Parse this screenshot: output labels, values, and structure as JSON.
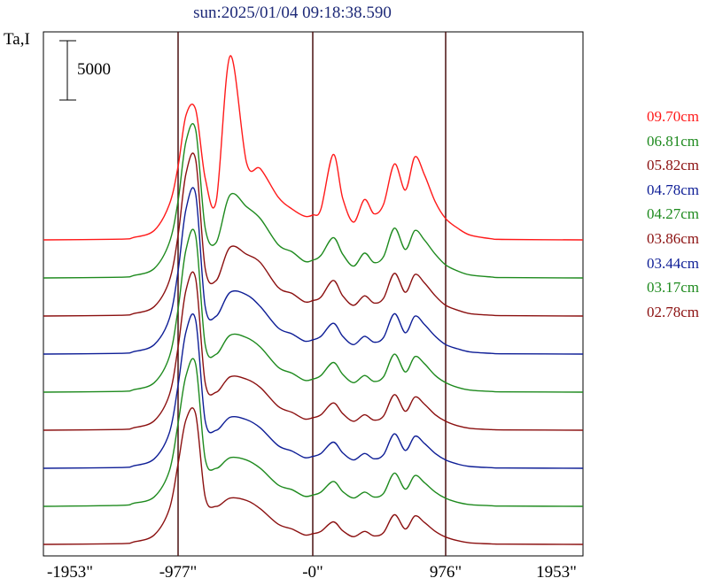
{
  "header": {
    "title": "sun:2025/01/04 09:18:38.590",
    "ylabel": "Ta,I",
    "scale_bar_label": "5000"
  },
  "x_ticks": [
    "-1953\"",
    "-977\"",
    "-0\"",
    "976\"",
    "1953\""
  ],
  "colors": {
    "red": "#ff1a1a",
    "green": "#1e8a1e",
    "maroon": "#8b1010",
    "blue": "#0e1e96"
  },
  "chart_data": {
    "type": "line",
    "title": "sun:2025/01/04 09:18:38.590",
    "xlabel": "",
    "ylabel": "Ta,I",
    "xlim": [
      -1953,
      1953
    ],
    "x_ticks": [
      -1953,
      -977,
      0,
      976,
      1953
    ],
    "vertical_markers": [
      -977,
      0,
      976
    ],
    "scale_bar": 5000,
    "legend_position": "right",
    "grid": false,
    "stacked_with_offset": true,
    "x": [
      -1953,
      -1400,
      -1300,
      -1150,
      -1040,
      -977,
      -920,
      -850,
      -780,
      -700,
      -600,
      -480,
      -380,
      -250,
      -150,
      -60,
      0,
      60,
      150,
      220,
      300,
      380,
      450,
      520,
      600,
      680,
      750,
      820,
      900,
      976,
      1060,
      1150,
      1300,
      1400,
      1953
    ],
    "series": [
      {
        "name": "09.70cm",
        "color": "red",
        "values": [
          0,
          60,
          200,
          800,
          3000,
          6200,
          10500,
          11000,
          5200,
          3300,
          15500,
          6500,
          6000,
          3600,
          2600,
          2000,
          2100,
          2600,
          7200,
          3500,
          1500,
          3400,
          2200,
          3000,
          6400,
          4200,
          7000,
          5500,
          3200,
          1800,
          1000,
          400,
          100,
          40,
          0
        ]
      },
      {
        "name": "06.81cm",
        "color": "green",
        "values": [
          0,
          60,
          200,
          800,
          3000,
          6500,
          11500,
          12500,
          4200,
          3000,
          7000,
          6000,
          5000,
          2800,
          2200,
          1400,
          1500,
          1900,
          3400,
          2000,
          1000,
          2100,
          1300,
          1800,
          4200,
          2400,
          4000,
          3200,
          2000,
          1100,
          600,
          250,
          80,
          30,
          0
        ]
      },
      {
        "name": "05.82cm",
        "color": "maroon",
        "values": [
          0,
          60,
          200,
          800,
          3000,
          6800,
          12000,
          13200,
          4000,
          3000,
          5800,
          5200,
          4500,
          2400,
          1900,
          1200,
          1300,
          1600,
          3000,
          1700,
          900,
          1700,
          1100,
          1500,
          3600,
          2000,
          3500,
          2800,
          1700,
          900,
          500,
          200,
          70,
          30,
          0
        ]
      },
      {
        "name": "04.78cm",
        "color": "blue",
        "values": [
          0,
          60,
          200,
          800,
          3000,
          7000,
          12200,
          13500,
          4000,
          3200,
          5200,
          5000,
          4000,
          2200,
          1700,
          1100,
          1200,
          1500,
          2600,
          1500,
          800,
          1500,
          1000,
          1400,
          3400,
          1800,
          3200,
          2500,
          1500,
          800,
          450,
          180,
          60,
          25,
          0
        ]
      },
      {
        "name": "04.27cm",
        "color": "green",
        "values": [
          0,
          60,
          200,
          800,
          3000,
          7000,
          12000,
          13200,
          4000,
          3200,
          4800,
          4600,
          3800,
          2100,
          1600,
          1000,
          1100,
          1400,
          2500,
          1500,
          800,
          1400,
          900,
          1300,
          3200,
          1700,
          3000,
          2400,
          1400,
          800,
          400,
          170,
          60,
          25,
          0
        ]
      },
      {
        "name": "03.86cm",
        "color": "maroon",
        "values": [
          0,
          60,
          200,
          800,
          3000,
          7000,
          11800,
          12800,
          4000,
          3200,
          4500,
          4300,
          3600,
          2000,
          1500,
          950,
          1050,
          1300,
          2300,
          1400,
          750,
          1300,
          850,
          1200,
          3000,
          1600,
          2800,
          2200,
          1300,
          750,
          380,
          160,
          55,
          25,
          0
        ]
      },
      {
        "name": "03.44cm",
        "color": "blue",
        "values": [
          0,
          60,
          200,
          800,
          3000,
          7000,
          11500,
          12500,
          4000,
          3200,
          4300,
          4100,
          3400,
          1900,
          1450,
          900,
          1000,
          1250,
          2200,
          1300,
          700,
          1250,
          800,
          1150,
          2900,
          1500,
          2700,
          2100,
          1250,
          700,
          360,
          150,
          50,
          20,
          0
        ]
      },
      {
        "name": "03.17cm",
        "color": "green",
        "values": [
          0,
          80,
          250,
          800,
          3000,
          7000,
          11000,
          12000,
          4000,
          3200,
          4100,
          3900,
          3200,
          1800,
          1400,
          850,
          950,
          1200,
          2100,
          1250,
          700,
          1200,
          780,
          1100,
          2800,
          1450,
          2600,
          2000,
          1200,
          680,
          340,
          140,
          50,
          20,
          0
        ]
      },
      {
        "name": "02.78cm",
        "color": "maroon",
        "values": [
          0,
          60,
          200,
          800,
          3000,
          6800,
          10500,
          11000,
          4000,
          3200,
          3900,
          3700,
          3000,
          1700,
          1300,
          800,
          900,
          1100,
          1900,
          1150,
          650,
          1100,
          720,
          1000,
          2500,
          1300,
          2400,
          1850,
          1100,
          620,
          320,
          130,
          45,
          20,
          0
        ]
      }
    ]
  }
}
